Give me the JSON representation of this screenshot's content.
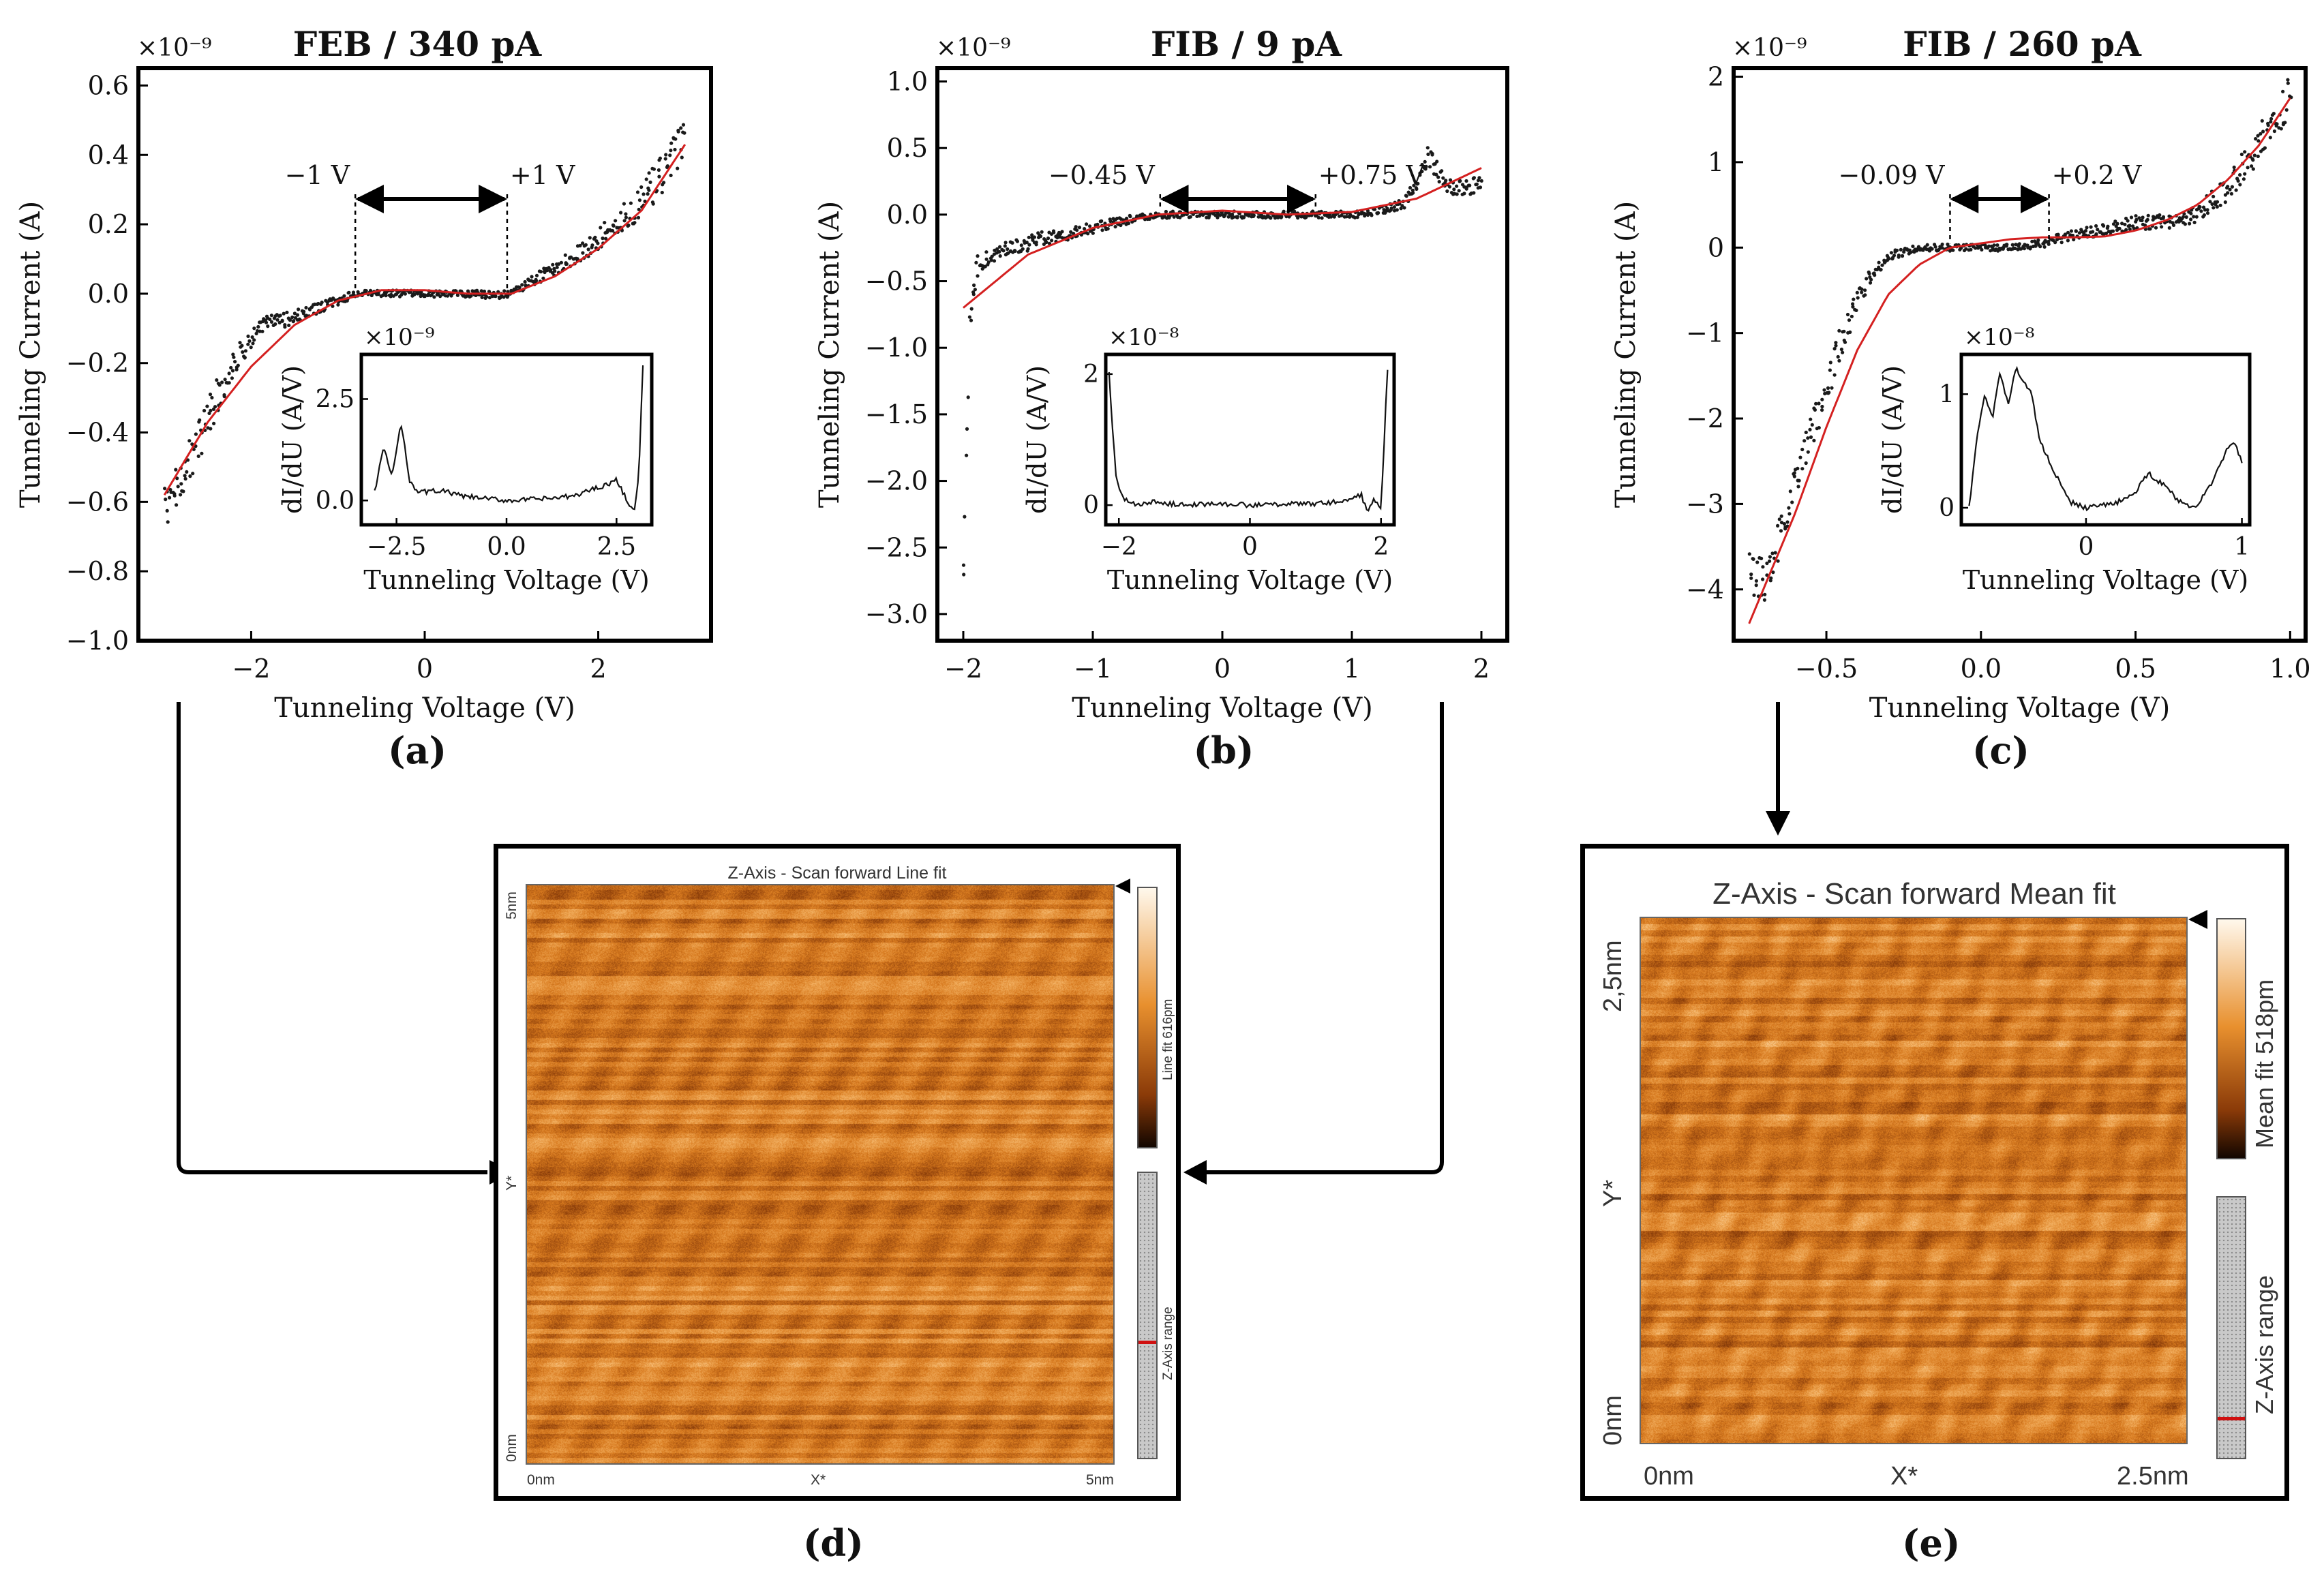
{
  "chart_data": [
    {
      "type": "scatter",
      "panel": "(a)",
      "title": "FEB / 340 pA",
      "xlabel": "Tunneling Voltage (V)",
      "ylabel": "Tunneling Current (A)",
      "exponent": "×10⁻⁹",
      "xlim": [
        -3.3,
        3.3
      ],
      "ylim": [
        -1.0,
        0.65
      ],
      "xticks": [
        -2,
        0,
        2
      ],
      "xtick_labels": [
        "−2",
        "0",
        "2"
      ],
      "yticks": [
        -1.0,
        -0.8,
        -0.6,
        -0.4,
        -0.2,
        0.0,
        0.2,
        0.4,
        0.6
      ],
      "ytick_labels": [
        "−1.0",
        "−0.8",
        "−0.6",
        "−0.4",
        "−0.2",
        "0.0",
        "0.2",
        "0.4",
        "0.6"
      ],
      "series": [
        {
          "name": "measured",
          "style": "black dots",
          "x": [
            -3.0,
            -2.8,
            -2.6,
            -2.4,
            -2.2,
            -2.0,
            -1.8,
            -1.6,
            -1.4,
            -1.2,
            -1.0,
            -0.8,
            -0.6,
            -0.4,
            -0.2,
            0.0,
            0.2,
            0.4,
            0.6,
            0.8,
            1.0,
            1.2,
            1.4,
            1.6,
            1.8,
            2.0,
            2.2,
            2.4,
            2.6,
            2.8,
            3.0
          ],
          "y": [
            -0.62,
            -0.53,
            -0.42,
            -0.3,
            -0.2,
            -0.13,
            -0.08,
            -0.075,
            -0.06,
            -0.04,
            -0.02,
            0.0,
            0.0,
            0.0,
            0.0,
            0.0,
            0.0,
            0.0,
            0.0,
            -0.005,
            0.0,
            0.03,
            0.06,
            0.09,
            0.12,
            0.16,
            0.2,
            0.24,
            0.3,
            0.36,
            0.45
          ]
        },
        {
          "name": "fit",
          "style": "red line",
          "x": [
            -3.0,
            -2.5,
            -2.0,
            -1.5,
            -1.0,
            -0.5,
            0.0,
            0.5,
            1.0,
            1.5,
            2.0,
            2.5,
            3.0
          ],
          "y": [
            -0.58,
            -0.37,
            -0.21,
            -0.09,
            -0.02,
            0.01,
            0.01,
            0.0,
            0.0,
            0.05,
            0.13,
            0.24,
            0.43
          ]
        }
      ],
      "gap_annotation": {
        "left_label": "−1 V",
        "right_label": "+1 V",
        "left": -0.8,
        "right": 0.95
      },
      "inset": {
        "xlabel": "Tunneling Voltage (V)",
        "ylabel": "dI/dU (A/V)",
        "exponent": "×10⁻⁹",
        "xlim": [
          -3.3,
          3.3
        ],
        "ylim": [
          -0.6,
          3.6
        ],
        "xticks": [
          -2.5,
          0.0,
          2.5
        ],
        "xtick_labels": [
          "−2.5",
          "0.0",
          "2.5"
        ],
        "yticks": [
          0.0,
          2.5
        ],
        "ytick_labels": [
          "0.0",
          "2.5"
        ],
        "x": [
          -3.0,
          -2.8,
          -2.6,
          -2.4,
          -2.2,
          -2.0,
          -1.5,
          -1.0,
          -0.5,
          0.0,
          0.5,
          1.0,
          1.5,
          2.0,
          2.3,
          2.5,
          2.7,
          2.9,
          3.0,
          3.1
        ],
        "y": [
          0.2,
          1.3,
          0.6,
          1.9,
          0.5,
          0.2,
          0.25,
          0.1,
          0.05,
          0.0,
          0.02,
          0.05,
          0.1,
          0.3,
          0.4,
          0.5,
          0.1,
          -0.3,
          0.5,
          3.3
        ]
      }
    },
    {
      "type": "scatter",
      "panel": "(b)",
      "title": "FIB / 9 pA",
      "xlabel": "Tunneling Voltage (V)",
      "ylabel": "Tunneling Current (A)",
      "exponent": "×10⁻⁹",
      "xlim": [
        -2.2,
        2.2
      ],
      "ylim": [
        -3.2,
        1.1
      ],
      "xticks": [
        -2,
        -1,
        0,
        1,
        2
      ],
      "xtick_labels": [
        "−2",
        "−1",
        "0",
        "1",
        "2"
      ],
      "yticks": [
        -3.0,
        -2.5,
        -2.0,
        -1.5,
        -1.0,
        -0.5,
        0.0,
        0.5,
        1.0
      ],
      "ytick_labels": [
        "−3.0",
        "−2.5",
        "−2.0",
        "−1.5",
        "−1.0",
        "−0.5",
        "0.0",
        "0.5",
        "1.0"
      ],
      "series": [
        {
          "name": "measured",
          "style": "black dots",
          "x": [
            -2.0,
            -1.98,
            -1.95,
            -1.9,
            -1.8,
            -1.6,
            -1.4,
            -1.2,
            -1.0,
            -0.8,
            -0.6,
            -0.4,
            -0.2,
            0.0,
            0.2,
            0.4,
            0.6,
            0.8,
            1.0,
            1.2,
            1.4,
            1.5,
            1.6,
            1.7,
            1.8,
            1.9,
            2.0
          ],
          "y": [
            -2.9,
            -1.9,
            -0.9,
            -0.4,
            -0.32,
            -0.25,
            -0.18,
            -0.15,
            -0.1,
            -0.05,
            -0.02,
            0.0,
            0.0,
            0.0,
            0.0,
            0.0,
            0.0,
            0.0,
            0.0,
            0.03,
            0.08,
            0.25,
            0.45,
            0.25,
            0.2,
            0.2,
            0.25
          ]
        },
        {
          "name": "fit",
          "style": "red line",
          "x": [
            -2.0,
            -1.5,
            -1.0,
            -0.5,
            0.0,
            0.5,
            1.0,
            1.5,
            2.0
          ],
          "y": [
            -0.7,
            -0.3,
            -0.1,
            0.0,
            0.03,
            0.0,
            0.02,
            0.12,
            0.35
          ]
        }
      ],
      "gap_annotation": {
        "left_label": "−0.45 V",
        "right_label": "+0.75 V",
        "left": -0.48,
        "right": 0.72
      },
      "inset": {
        "xlabel": "Tunneling Voltage (V)",
        "ylabel": "dI/dU (A/V)",
        "exponent": "×10⁻⁸",
        "xlim": [
          -2.2,
          2.2
        ],
        "ylim": [
          -0.3,
          2.3
        ],
        "xticks": [
          -2,
          0,
          2
        ],
        "xtick_labels": [
          "−2",
          "0",
          "2"
        ],
        "yticks": [
          0,
          2
        ],
        "ytick_labels": [
          "0",
          "2"
        ],
        "x": [
          -2.15,
          -2.05,
          -1.95,
          -1.85,
          -1.7,
          -1.5,
          -1.0,
          -0.5,
          0.0,
          0.5,
          1.0,
          1.5,
          1.7,
          1.8,
          1.9,
          2.0,
          2.1
        ],
        "y": [
          2.0,
          0.5,
          0.1,
          0.05,
          0.0,
          0.05,
          0.0,
          0.02,
          0.0,
          0.01,
          0.02,
          0.08,
          0.15,
          -0.1,
          0.1,
          -0.05,
          2.1
        ]
      }
    },
    {
      "type": "scatter",
      "panel": "(c)",
      "title": "FIB / 260 pA",
      "xlabel": "Tunneling Voltage (V)",
      "ylabel": "Tunneling Current (A)",
      "exponent": "×10⁻⁹",
      "xlim": [
        -0.8,
        1.05
      ],
      "ylim": [
        -4.6,
        2.1
      ],
      "xticks": [
        -0.5,
        0.0,
        0.5,
        1.0
      ],
      "xtick_labels": [
        "−0.5",
        "0.0",
        "0.5",
        "1.0"
      ],
      "yticks": [
        -4,
        -3,
        -2,
        -1,
        0,
        1,
        2
      ],
      "ytick_labels": [
        "−4",
        "−3",
        "−2",
        "−1",
        "0",
        "1",
        "2"
      ],
      "series": [
        {
          "name": "measured",
          "style": "black dots",
          "x": [
            -0.75,
            -0.7,
            -0.65,
            -0.6,
            -0.55,
            -0.5,
            -0.45,
            -0.4,
            -0.35,
            -0.3,
            -0.2,
            -0.1,
            0.0,
            0.1,
            0.2,
            0.3,
            0.4,
            0.5,
            0.6,
            0.7,
            0.8,
            0.9,
            1.0
          ],
          "y": [
            -3.8,
            -3.9,
            -3.4,
            -2.7,
            -2.2,
            -1.6,
            -1.1,
            -0.6,
            -0.3,
            -0.1,
            0.0,
            0.0,
            0.0,
            0.0,
            0.05,
            0.15,
            0.2,
            0.3,
            0.3,
            0.4,
            0.7,
            1.2,
            1.8
          ]
        },
        {
          "name": "fit",
          "style": "red line",
          "x": [
            -0.75,
            -0.6,
            -0.5,
            -0.4,
            -0.3,
            -0.2,
            -0.1,
            0.0,
            0.1,
            0.2,
            0.3,
            0.4,
            0.5,
            0.6,
            0.7,
            0.8,
            0.9,
            1.0
          ],
          "y": [
            -4.4,
            -3.1,
            -2.1,
            -1.2,
            -0.55,
            -0.2,
            0.0,
            0.05,
            0.1,
            0.12,
            0.12,
            0.13,
            0.2,
            0.32,
            0.5,
            0.8,
            1.2,
            1.75
          ]
        }
      ],
      "gap_annotation": {
        "left_label": "−0.09 V",
        "right_label": "+0.2 V",
        "left": -0.1,
        "right": 0.22
      },
      "inset": {
        "xlabel": "Tunneling Voltage (V)",
        "ylabel": "dI/dU (A/V)",
        "exponent": "×10⁻⁸",
        "xlim": [
          -0.8,
          1.05
        ],
        "ylim": [
          -0.15,
          1.35
        ],
        "xticks": [
          0,
          1
        ],
        "xtick_labels": [
          "0",
          "1"
        ],
        "yticks": [
          0,
          1
        ],
        "ytick_labels": [
          "0",
          "1"
        ],
        "x": [
          -0.75,
          -0.7,
          -0.65,
          -0.6,
          -0.55,
          -0.5,
          -0.45,
          -0.4,
          -0.35,
          -0.3,
          -0.2,
          -0.1,
          0.0,
          0.1,
          0.2,
          0.3,
          0.4,
          0.5,
          0.6,
          0.7,
          0.8,
          0.9,
          0.95,
          1.0
        ],
        "y": [
          0.0,
          0.6,
          1.0,
          0.8,
          1.2,
          0.9,
          1.25,
          1.1,
          1.0,
          0.6,
          0.3,
          0.05,
          0.0,
          0.02,
          0.05,
          0.1,
          0.3,
          0.2,
          0.05,
          0.0,
          0.2,
          0.5,
          0.6,
          0.4
        ]
      }
    }
  ],
  "afm": [
    {
      "panel": "(d)",
      "title": "Z-Axis - Scan forward   Line fit",
      "x_left": "0nm",
      "x_mid": "X*",
      "x_right": "5nm",
      "y_top": "5nm",
      "y_mid": "Y*",
      "y_bottom": "0nm",
      "colorbar_label": "Line fit 616pm",
      "range_label": "Z-Axis range"
    },
    {
      "panel": "(e)",
      "title": "Z-Axis - Scan forward   Mean fit",
      "x_left": "0nm",
      "x_mid": "X*",
      "x_right": "2.5nm",
      "y_top": "2,5nm",
      "y_mid": "Y*",
      "y_bottom": "0nm",
      "colorbar_label": "Mean fit 518pm",
      "range_label": "Z-Axis range"
    }
  ],
  "colors": {
    "data": "#111111",
    "fit": "#d42020",
    "afm_mid": "#d87a1e",
    "afm_dark": "#3a1603",
    "afm_light": "#fbe3c2"
  }
}
